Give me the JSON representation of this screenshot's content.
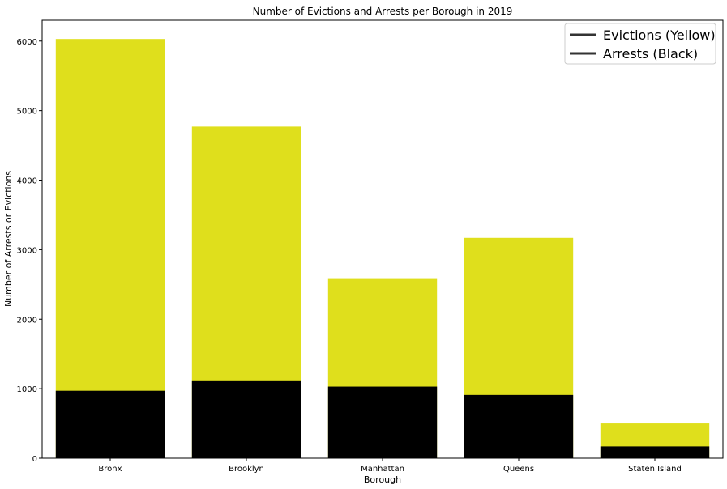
{
  "chart_data": {
    "type": "bar",
    "title": "Number of Evictions and Arrests per Borough in 2019",
    "xlabel": "Borough",
    "ylabel": "Number of Arrests or Evictions",
    "categories": [
      "Bronx",
      "Brooklyn",
      "Manhattan",
      "Queens",
      "Staten Island"
    ],
    "series": [
      {
        "name": "Evictions (Yellow)",
        "color": "#dfdf1c",
        "values": [
          6030,
          4770,
          2590,
          3170,
          500
        ]
      },
      {
        "name": "Arrests (Black)",
        "color": "#000000",
        "values": [
          970,
          1120,
          1030,
          910,
          170
        ]
      }
    ],
    "ylim": [
      0,
      6300
    ],
    "yticks": [
      0,
      1000,
      2000,
      3000,
      4000,
      5000,
      6000
    ],
    "grid": false,
    "legend": "top-right",
    "legend_line_color": "#333333"
  }
}
